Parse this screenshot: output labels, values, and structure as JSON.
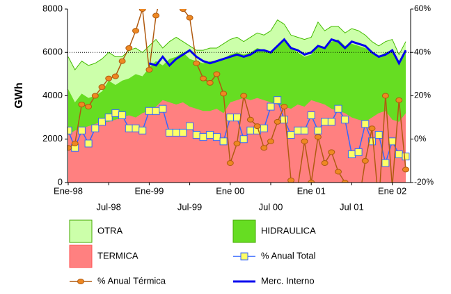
{
  "chart_data": {
    "type": "stacked-area-line",
    "y_label": "GWh",
    "categories": [
      "Ene-98",
      null,
      null,
      null,
      null,
      null,
      "Jul-98",
      null,
      null,
      null,
      null,
      null,
      "Ene-99",
      null,
      null,
      null,
      null,
      null,
      "Jul-99",
      null,
      null,
      null,
      null,
      null,
      "Ene 00",
      null,
      null,
      null,
      null,
      null,
      "Jul 00",
      null,
      null,
      null,
      null,
      null,
      "Ene 01",
      null,
      null,
      null,
      null,
      null,
      "Jul 01",
      null,
      null,
      null,
      null,
      null,
      "Ene 02",
      null,
      null
    ],
    "ylim": [
      0,
      8000
    ],
    "yticks": [
      0,
      2000,
      4000,
      6000,
      8000
    ],
    "y2lim": [
      -20,
      60
    ],
    "y2ticks": [
      {
        "value": -20,
        "label": "-20%"
      },
      {
        "value": 0,
        "label": "0%"
      },
      {
        "value": 20,
        "label": "20%"
      },
      {
        "value": 40,
        "label": "40%"
      },
      {
        "value": 60,
        "label": "60%"
      }
    ],
    "reference_lines": [
      6000
    ],
    "series": [
      {
        "name": "TERMICA",
        "kind": "area",
        "color": "#ff8080",
        "values": [
          2200,
          2400,
          2500,
          2600,
          2700,
          2800,
          2800,
          2900,
          3000,
          3100,
          3000,
          3200,
          3300,
          3500,
          3800,
          3700,
          3600,
          3700,
          3500,
          3400,
          3300,
          3300,
          3400,
          3200,
          3700,
          3800,
          3900,
          3800,
          3900,
          3800,
          3700,
          3600,
          3500,
          3400,
          3600,
          3500,
          3800,
          3700,
          3600,
          3400,
          3300,
          3200,
          3000,
          2900,
          2800,
          3000,
          3200,
          3300,
          2900,
          2800,
          3200
        ]
      },
      {
        "name": "HIDRAULICA",
        "kind": "area",
        "color": "#66dd22",
        "values": [
          2100,
          1300,
          1600,
          1300,
          1300,
          1400,
          1900,
          1600,
          1700,
          1700,
          2000,
          1700,
          2000,
          2100,
          1600,
          2000,
          2200,
          2300,
          2200,
          2200,
          2200,
          2300,
          2200,
          2500,
          2200,
          2200,
          2000,
          2200,
          2300,
          2300,
          2300,
          2700,
          3100,
          2800,
          2400,
          2300,
          2100,
          2600,
          2600,
          3100,
          3300,
          3100,
          3400,
          3400,
          3400,
          3000,
          2600,
          2700,
          3200,
          2800,
          2800
        ]
      },
      {
        "name": "OTRA",
        "kind": "area",
        "color": "#ccffaa",
        "values": [
          1500,
          1500,
          1500,
          1500,
          1500,
          1500,
          1300,
          1300,
          1100,
          1300,
          1200,
          1100,
          1000,
          1000,
          800,
          800,
          900,
          500,
          600,
          500,
          600,
          600,
          600,
          700,
          700,
          700,
          600,
          700,
          700,
          700,
          1000,
          1200,
          700,
          600,
          700,
          800,
          800,
          1100,
          800,
          700,
          600,
          600,
          700,
          700,
          600,
          500,
          500,
          500,
          500,
          300,
          500
        ]
      },
      {
        "name": "% Anual Total",
        "kind": "line-marker",
        "axis": "y2",
        "color": "#3366ff",
        "marker": "#ffff66",
        "values": [
          4,
          -4,
          4,
          -2,
          5,
          8,
          10,
          12,
          11,
          5,
          5,
          4,
          13,
          13,
          14,
          3,
          3,
          3,
          6,
          2,
          1,
          2,
          1,
          -1,
          10,
          10,
          0,
          4,
          4,
          5,
          15,
          18,
          9,
          2,
          4,
          4,
          11,
          4,
          8,
          8,
          14,
          9,
          -7,
          -6,
          7,
          -1,
          2,
          -11,
          -1,
          -7,
          -8
        ]
      },
      {
        "name": "% Anual Térmica",
        "kind": "line-dot",
        "axis": "y2",
        "color": "#b05a10",
        "marker": "#ee8822",
        "values": [
          -4,
          -2,
          16,
          15,
          20,
          24,
          28,
          29,
          36,
          42,
          50,
          60,
          32,
          57,
          70,
          65,
          66,
          60,
          56,
          35,
          28,
          26,
          30,
          21,
          -11,
          -2,
          20,
          9,
          6,
          -4,
          -1,
          8,
          15,
          -19,
          -22,
          -1,
          -20,
          1,
          -11,
          -6,
          -15,
          -20,
          -25,
          -30,
          -10,
          5,
          -30,
          20,
          -22,
          18,
          -14
        ]
      },
      {
        "name": "Merc. Interno",
        "kind": "line",
        "color": "#0000ee",
        "values": [
          null,
          null,
          null,
          null,
          null,
          null,
          null,
          null,
          null,
          null,
          null,
          null,
          5500,
          5400,
          5800,
          5400,
          5700,
          5900,
          6100,
          5800,
          5600,
          5500,
          5600,
          5700,
          5800,
          5900,
          5800,
          5900,
          6100,
          6100,
          6000,
          6300,
          6600,
          6200,
          6100,
          5900,
          6000,
          6300,
          6200,
          6600,
          6500,
          6200,
          6500,
          6400,
          6300,
          6000,
          5800,
          5900,
          6100,
          5500,
          6100
        ]
      }
    ]
  }
}
